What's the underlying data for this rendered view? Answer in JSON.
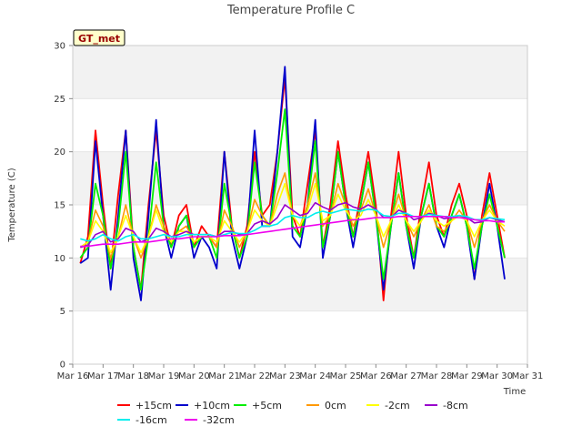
{
  "chart_data": {
    "type": "line",
    "title": "Temperature Profile C",
    "xlabel": "Time",
    "ylabel": "Temperature (C)",
    "badge": "GT_met",
    "ylim": [
      0,
      30
    ],
    "yticks": [
      0,
      5,
      10,
      15,
      20,
      25,
      30
    ],
    "xlim": [
      0,
      15
    ],
    "xticks": [
      "Mar 16",
      "Mar 17",
      "Mar 18",
      "Mar 19",
      "Mar 20",
      "Mar 21",
      "Mar 22",
      "Mar 23",
      "Mar 24",
      "Mar 25",
      "Mar 26",
      "Mar 27",
      "Mar 28",
      "Mar 29",
      "Mar 30",
      "Mar 31"
    ],
    "grid": "horizontal bands",
    "legend_position": "bottom",
    "x": [
      0.25,
      0.5,
      0.75,
      1.0,
      1.25,
      1.5,
      1.75,
      2.0,
      2.25,
      2.5,
      2.75,
      3.0,
      3.25,
      3.5,
      3.75,
      4.0,
      4.25,
      4.5,
      4.75,
      5.0,
      5.25,
      5.5,
      5.75,
      6.0,
      6.25,
      6.5,
      6.75,
      7.0,
      7.25,
      7.5,
      7.75,
      8.0,
      8.25,
      8.5,
      8.75,
      9.0,
      9.25,
      9.5,
      9.75,
      10.0,
      10.25,
      10.5,
      10.75,
      11.0,
      11.25,
      11.5,
      11.75,
      12.0,
      12.25,
      12.5,
      12.75,
      13.0,
      13.25,
      13.5,
      13.75,
      14.0,
      14.25
    ],
    "series": [
      {
        "name": "+15cm",
        "color": "#ff0000",
        "values": [
          9.5,
          12,
          22,
          15,
          9,
          16,
          22,
          11,
          7,
          15,
          22,
          14,
          11,
          14,
          15,
          11,
          13,
          12,
          11,
          20,
          13,
          10,
          13,
          20,
          14,
          15,
          20,
          27,
          14,
          12,
          17,
          22,
          11,
          15,
          21,
          16,
          12,
          16,
          20,
          15,
          6,
          14,
          20,
          14,
          10,
          15,
          19,
          14,
          12,
          15,
          17,
          14,
          8,
          14,
          18,
          14,
          10
        ]
      },
      {
        "name": "+10cm",
        "color": "#0000cc",
        "values": [
          9.5,
          10,
          21,
          14,
          7,
          14,
          22,
          10,
          6,
          14,
          23,
          13,
          10,
          13,
          14,
          10,
          12,
          11,
          9,
          20,
          12,
          9,
          12,
          22,
          13,
          13,
          20,
          28,
          12,
          11,
          15,
          23,
          10,
          14,
          20,
          15,
          11,
          15,
          19,
          14,
          7,
          13,
          18,
          13,
          9,
          14,
          17,
          13,
          11,
          14,
          16,
          13,
          8,
          13,
          17,
          13,
          8
        ]
      },
      {
        "name": "+5cm",
        "color": "#00ee00",
        "values": [
          10,
          11,
          17,
          14,
          9,
          13,
          20,
          11,
          7,
          12,
          19,
          13,
          11,
          13,
          14,
          11,
          12,
          12,
          10,
          17,
          13,
          10,
          12,
          19,
          14,
          13,
          18,
          24,
          13,
          12,
          15,
          21,
          11,
          14,
          20,
          15,
          12,
          15,
          19,
          14,
          8,
          13,
          18,
          13,
          10,
          14,
          17,
          13,
          12,
          14,
          16,
          13,
          9,
          13,
          16,
          13,
          10
        ]
      },
      {
        "name": "0cm",
        "color": "#ff9900",
        "values": [
          11,
          11.5,
          14.5,
          13,
          10,
          12,
          15,
          12,
          10,
          12,
          15,
          13,
          11.5,
          12.5,
          13,
          11.5,
          12,
          12,
          11,
          14.5,
          13,
          11,
          12.5,
          15.5,
          14,
          13,
          16,
          18,
          14,
          13,
          15,
          18,
          13,
          14,
          17,
          15,
          13,
          14.5,
          16.5,
          14,
          11,
          13.5,
          16,
          13.5,
          12,
          13.5,
          15,
          13,
          12.5,
          13.5,
          14.5,
          13.5,
          11,
          13.5,
          15,
          13.5,
          12.5
        ]
      },
      {
        "name": "-2cm",
        "color": "#ffff00",
        "values": [
          11,
          11.5,
          13.5,
          12.5,
          10.5,
          12,
          14,
          12,
          10.5,
          12,
          14.5,
          12.5,
          11.5,
          12.5,
          12.5,
          11.5,
          12,
          12,
          11.5,
          13.5,
          12.5,
          11.5,
          12.5,
          14.5,
          13.5,
          13,
          15,
          17,
          14,
          13,
          14.5,
          17,
          13.5,
          14,
          16,
          14.5,
          13.5,
          14,
          15.5,
          14,
          12,
          13.5,
          15,
          13.5,
          12.5,
          13.5,
          14.5,
          13.5,
          13,
          13.5,
          14,
          13.5,
          12,
          13.5,
          14.5,
          13.5,
          13
        ]
      },
      {
        "name": "-8cm",
        "color": "#9900cc",
        "values": [
          11,
          11.2,
          12.2,
          12.5,
          11.5,
          11.8,
          12.8,
          12.5,
          11.5,
          11.8,
          12.8,
          12.5,
          12,
          12.2,
          12.5,
          12.2,
          12.2,
          12.2,
          12,
          12.5,
          12.5,
          12.2,
          12.3,
          13.2,
          13.5,
          13.2,
          13.8,
          15,
          14.5,
          14,
          14.2,
          15.2,
          14.8,
          14.5,
          15,
          15.2,
          14.8,
          14.6,
          15,
          14.6,
          13.8,
          13.8,
          14.5,
          14.2,
          13.6,
          13.8,
          14.2,
          14,
          13.7,
          13.8,
          14,
          13.8,
          13.3,
          13.4,
          13.8,
          13.6,
          13.4
        ]
      },
      {
        "name": "-16cm",
        "color": "#00eeee",
        "values": [
          11.8,
          11.6,
          11.8,
          12.2,
          11.8,
          11.6,
          12,
          12.2,
          11.8,
          11.8,
          12,
          12.2,
          12,
          12,
          12.2,
          12.2,
          12.2,
          12.2,
          12,
          12.2,
          12.4,
          12.3,
          12.3,
          12.6,
          13,
          13,
          13.2,
          13.8,
          14,
          13.8,
          13.8,
          14.2,
          14.4,
          14.2,
          14.4,
          14.6,
          14.5,
          14.4,
          14.6,
          14.5,
          14,
          13.9,
          14.2,
          14.2,
          13.9,
          13.9,
          14.1,
          14,
          13.9,
          13.9,
          14,
          13.9,
          13.6,
          13.6,
          13.8,
          13.7,
          13.6
        ]
      },
      {
        "name": "-32cm",
        "color": "#ee00ee",
        "values": [
          11.1,
          11.1,
          11.2,
          11.3,
          11.3,
          11.3,
          11.4,
          11.5,
          11.5,
          11.5,
          11.6,
          11.7,
          11.8,
          11.8,
          11.9,
          12,
          12,
          12,
          12,
          12.1,
          12.1,
          12.1,
          12.2,
          12.3,
          12.4,
          12.5,
          12.6,
          12.7,
          12.8,
          12.9,
          13,
          13.1,
          13.2,
          13.3,
          13.4,
          13.5,
          13.6,
          13.6,
          13.7,
          13.8,
          13.8,
          13.8,
          13.9,
          13.9,
          13.9,
          13.9,
          13.9,
          13.9,
          13.9,
          13.8,
          13.8,
          13.7,
          13.6,
          13.5,
          13.5,
          13.4,
          13.4
        ]
      }
    ]
  }
}
